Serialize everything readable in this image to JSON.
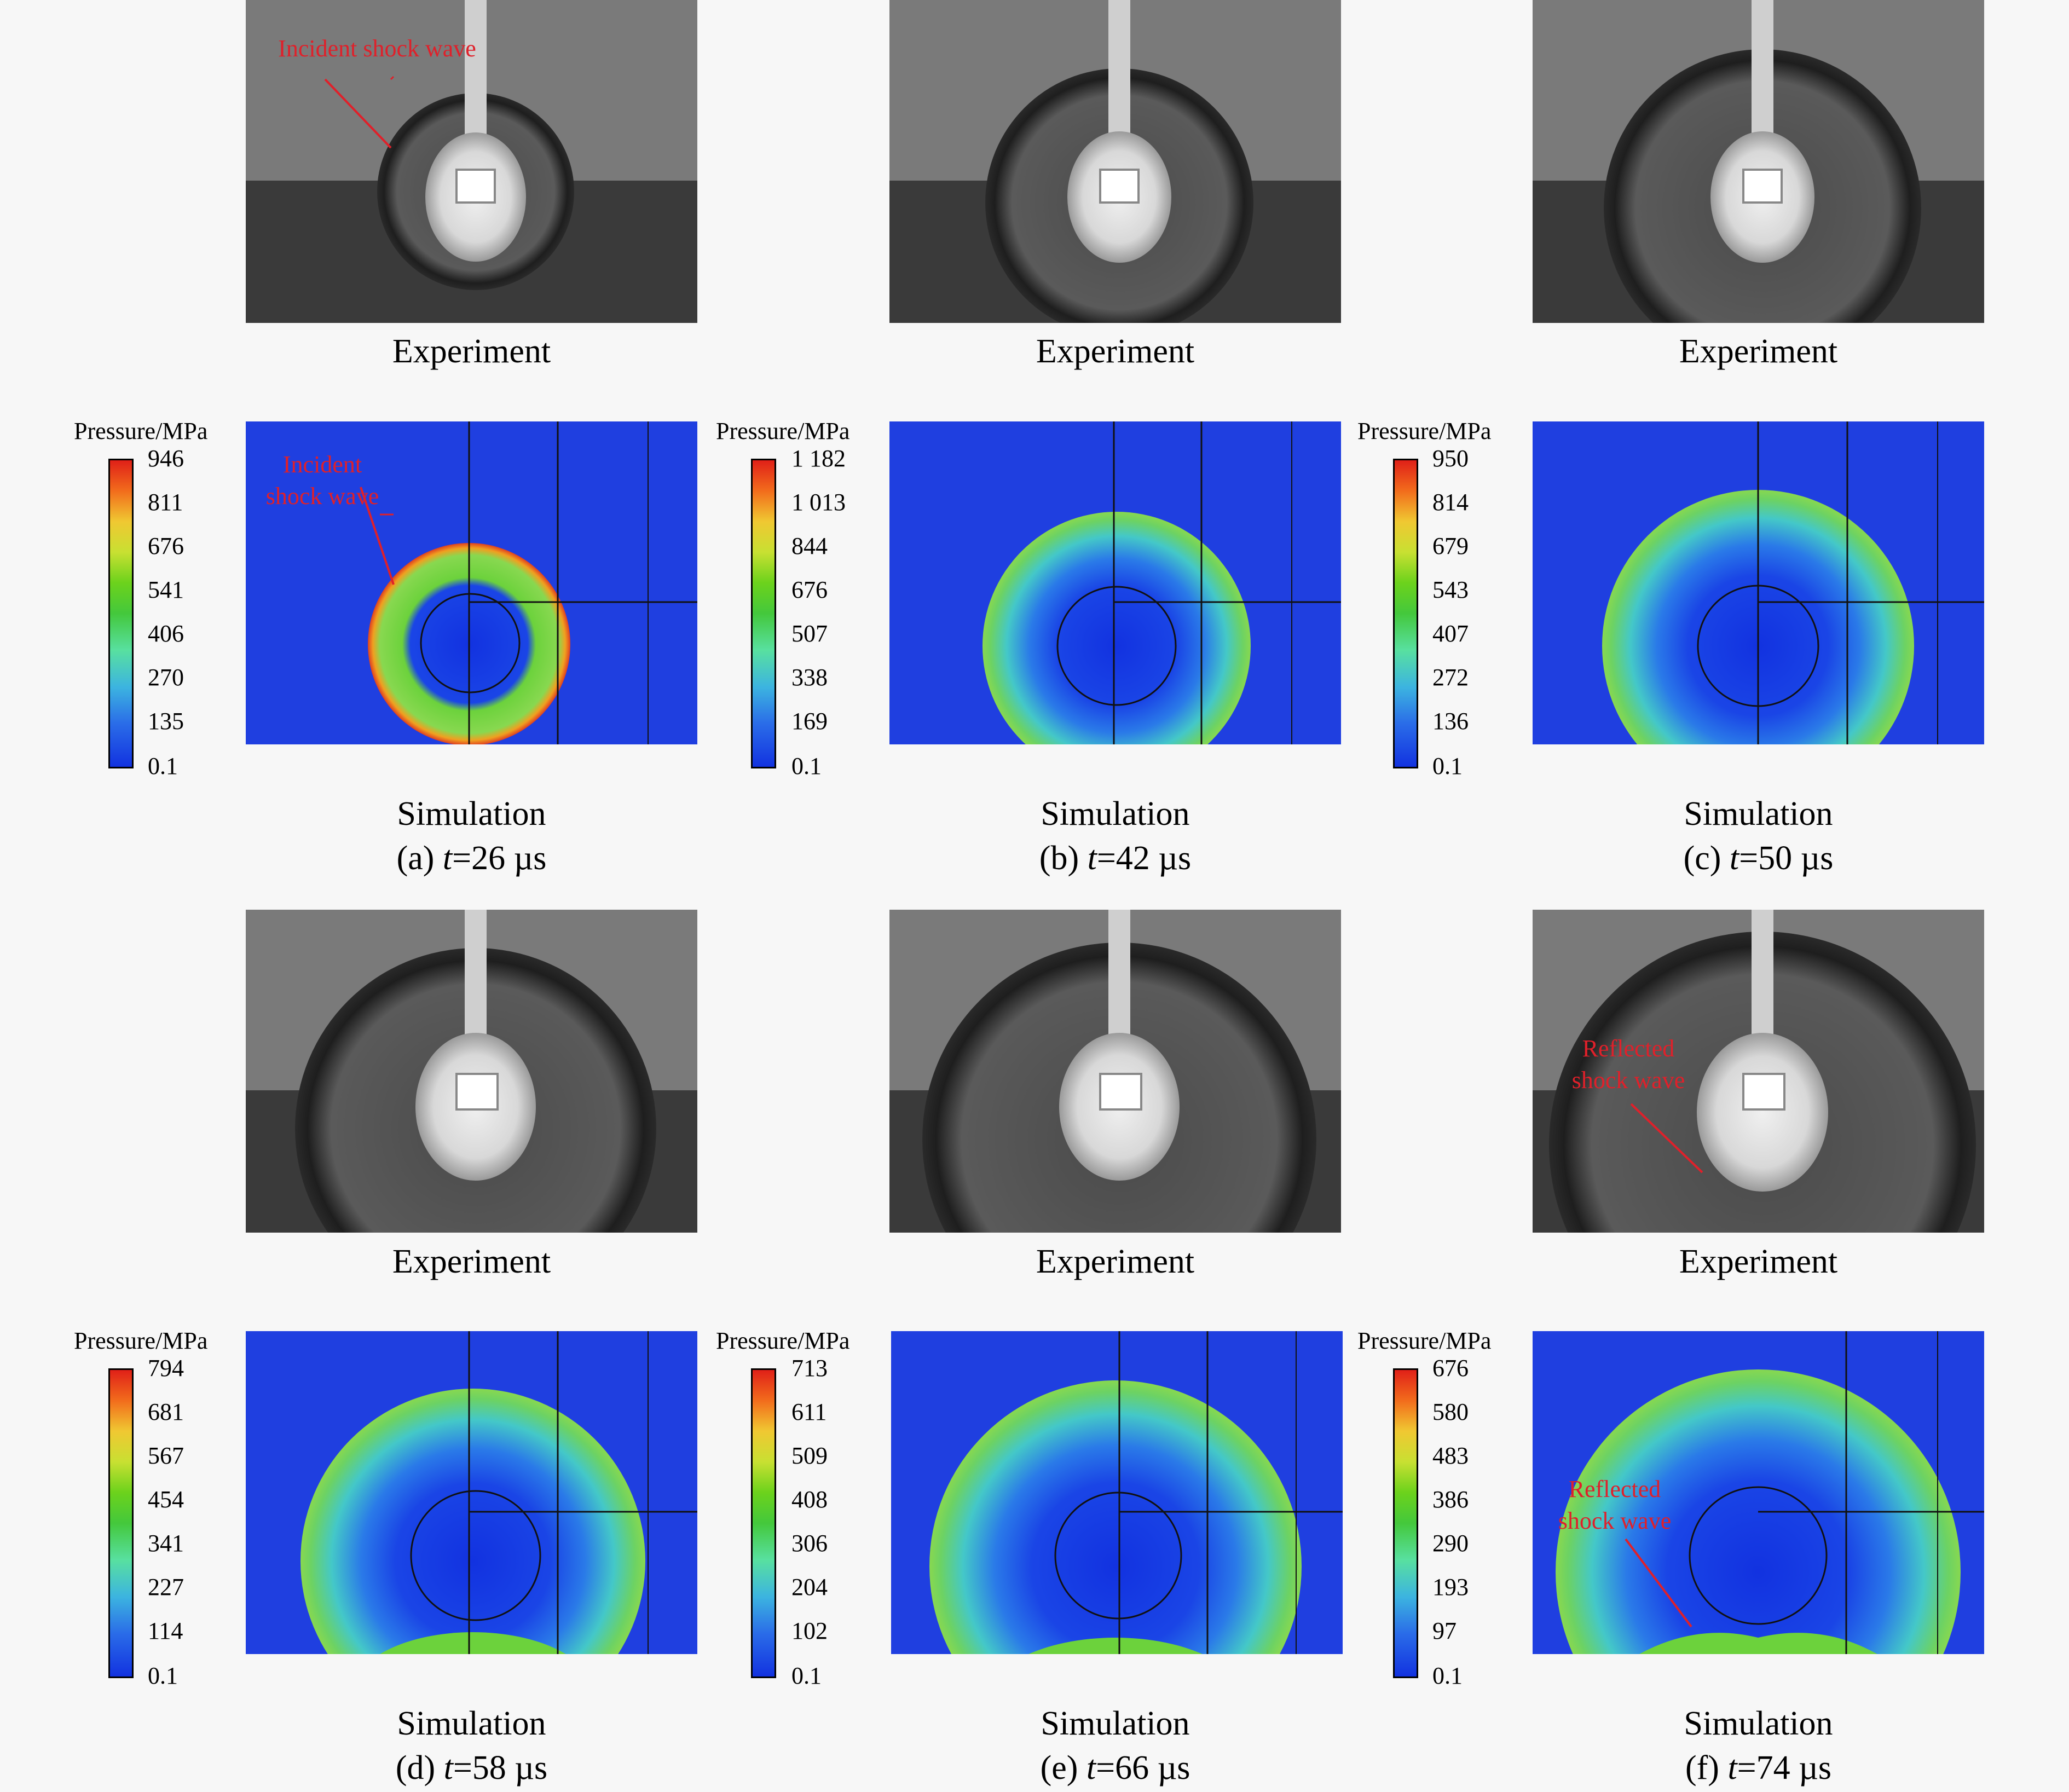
{
  "labels": {
    "experiment": "Experiment",
    "simulation": "Simulation",
    "colorbar_title": "Pressure/MPa"
  },
  "annotations": {
    "incident_line": "Incident shock wave",
    "incident_1": "Incident",
    "incident_2": "shock wave",
    "reflected_1": "Reflected",
    "reflected_2": "shock wave"
  },
  "panels": [
    {
      "letter": "(a)",
      "t_var": "t",
      "t_val": "=26 µs",
      "ticks": [
        "946",
        "811",
        "676",
        "541",
        "406",
        "270",
        "135",
        "0.1"
      ]
    },
    {
      "letter": "(b)",
      "t_var": "t",
      "t_val": "=42 µs",
      "ticks": [
        "1 182",
        "1 013",
        "844",
        "676",
        "507",
        "338",
        "169",
        "0.1"
      ]
    },
    {
      "letter": "(c)",
      "t_var": "t",
      "t_val": "=50 µs",
      "ticks": [
        "950",
        "814",
        "679",
        "543",
        "407",
        "272",
        "136",
        "0.1"
      ]
    },
    {
      "letter": "(d)",
      "t_var": "t",
      "t_val": "=58 µs",
      "ticks": [
        "794",
        "681",
        "567",
        "454",
        "341",
        "227",
        "114",
        "0.1"
      ]
    },
    {
      "letter": "(e)",
      "t_var": "t",
      "t_val": "=66 µs",
      "ticks": [
        "713",
        "611",
        "509",
        "408",
        "306",
        "204",
        "102",
        "0.1"
      ]
    },
    {
      "letter": "(f)",
      "t_var": "t",
      "t_val": "=74 µs",
      "ticks": [
        "676",
        "580",
        "483",
        "386",
        "290",
        "193",
        "97",
        "0.1"
      ]
    }
  ]
}
